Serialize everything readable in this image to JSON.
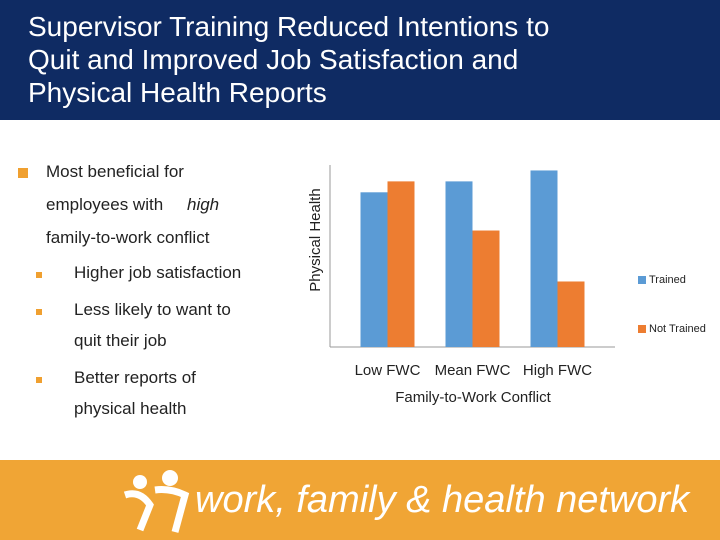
{
  "slide": {
    "title_lines": [
      "Supervisor Training Reduced Intentions to",
      "Quit and Improved Job Satisfaction and",
      "Physical Health Reports"
    ],
    "main_bullet": [
      "Most beneficial for",
      "employees with",
      "high",
      "family-to-work conflict"
    ],
    "sub_bullets": [
      [
        "Higher job satisfaction"
      ],
      [
        "Less likely to want to",
        "quit their job"
      ],
      [
        "Better reports of",
        "physical health"
      ]
    ],
    "footer": "work, family & health network"
  },
  "chart_data": {
    "type": "bar",
    "x_label": "Family-to-Work Conflict",
    "y_label": "Physical Health",
    "categories": [
      "Low FWC",
      "Mean FWC",
      "High FWC"
    ],
    "series": [
      {
        "name": "Trained",
        "color": "#5b9bd5",
        "values": [
          85,
          91,
          97
        ]
      },
      {
        "name": "Not Trained",
        "color": "#ed7d31",
        "values": [
          91,
          64,
          36
        ]
      }
    ],
    "ylim": [
      0,
      100
    ],
    "legend": "right"
  }
}
